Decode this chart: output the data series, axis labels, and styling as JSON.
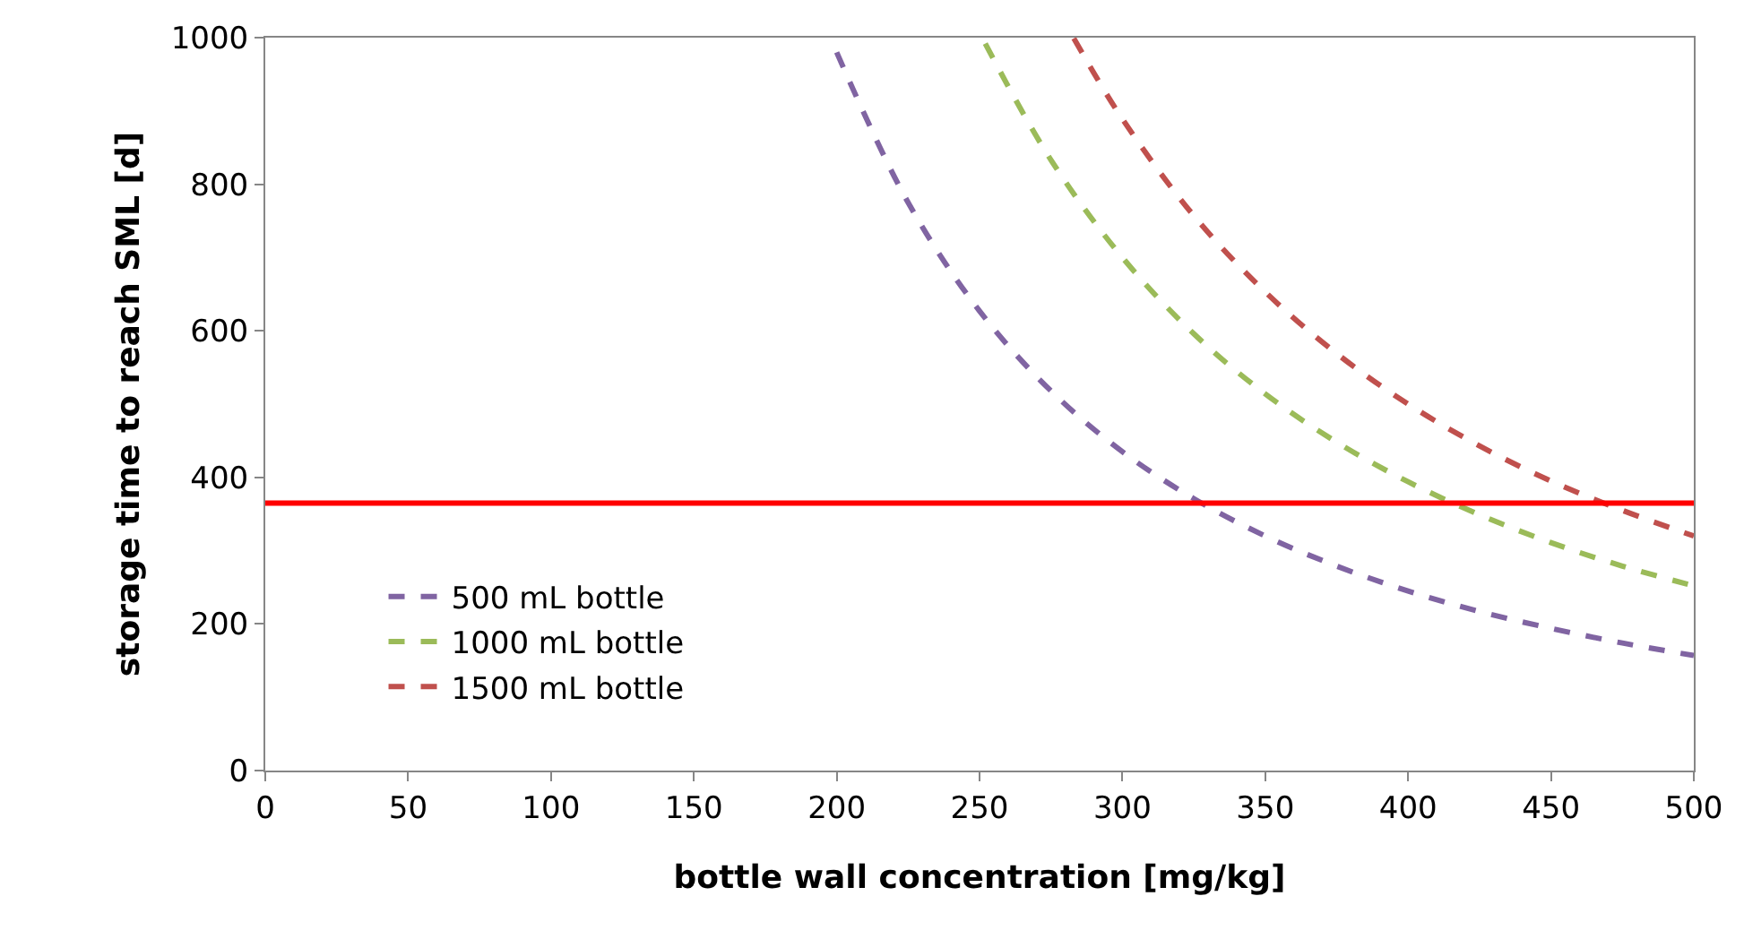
{
  "chart_data": {
    "type": "line",
    "xlabel": "bottle wall concentration [mg/kg]",
    "ylabel": "storage time to reach SML [d]",
    "xlim": [
      0,
      500
    ],
    "xticks": [
      0,
      50,
      100,
      150,
      200,
      250,
      300,
      350,
      400,
      450,
      500
    ],
    "ylim": [
      0,
      1000
    ],
    "yticks": [
      0,
      200,
      400,
      600,
      800,
      1000
    ],
    "grid": false,
    "legend": "bottom left",
    "marker": "none",
    "line_style": "dashed",
    "series": [
      {
        "name": "500 mL bottle",
        "color": "#8064a2",
        "x": [
          200,
          225,
          250,
          275,
          300,
          325,
          350,
          375,
          400,
          425,
          450,
          475,
          500
        ],
        "values": [
          980,
          775,
          627,
          518,
          435,
          371,
          320,
          279,
          245,
          217,
          194,
          174,
          157
        ]
      },
      {
        "name": "1000 mL bottle",
        "color": "#9bbb59",
        "x": [
          252,
          275,
          300,
          325,
          350,
          375,
          400,
          425,
          450,
          475,
          500
        ],
        "values": [
          992,
          833,
          700,
          596,
          514,
          448,
          394,
          349,
          311,
          279,
          252
        ]
      },
      {
        "name": "1500 mL bottle",
        "color": "#c0504d",
        "x": [
          283,
          300,
          325,
          350,
          375,
          400,
          425,
          450,
          475,
          500
        ],
        "values": [
          999,
          889,
          757,
          653,
          569,
          500,
          443,
          395,
          355,
          320
        ]
      }
    ],
    "ref_lines": [
      {
        "axis": "y",
        "value": 365,
        "color": "#ff0000",
        "line_style": "solid"
      }
    ]
  }
}
